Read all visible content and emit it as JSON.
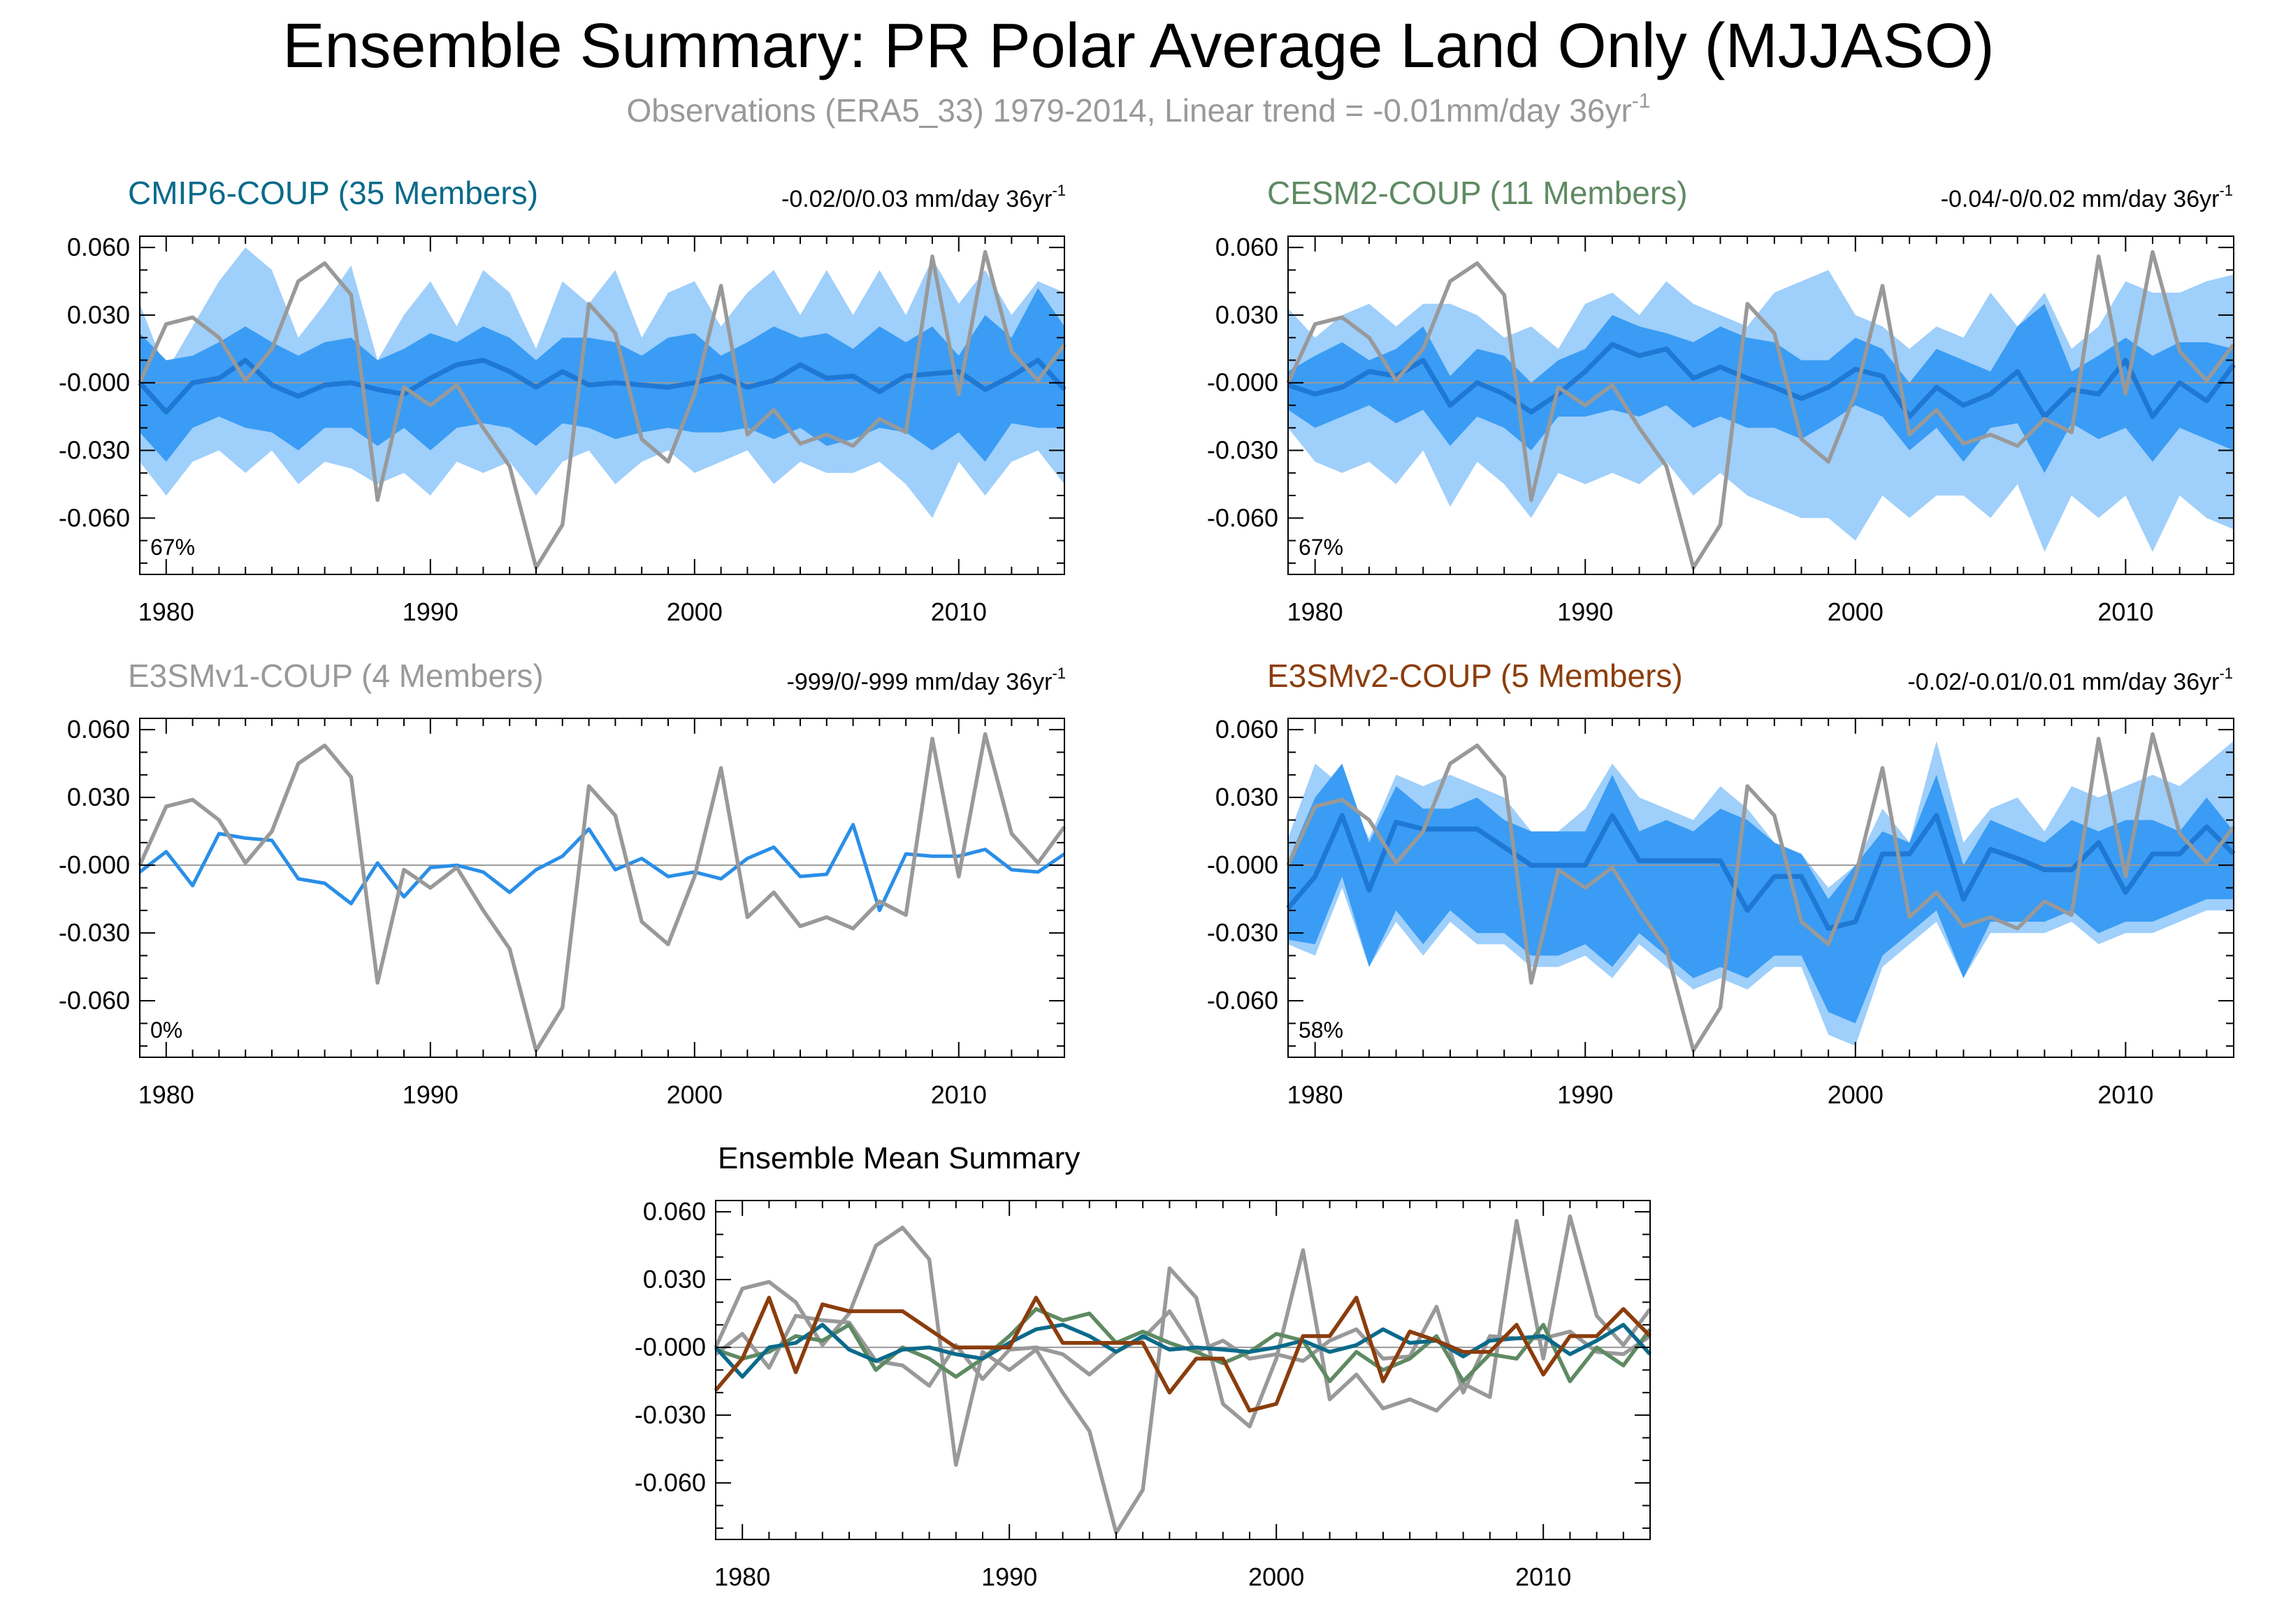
{
  "title": "Ensemble Summary: PR Polar Average Land Only (MJJASO)",
  "subtitle": {
    "text": "Observations (ERA5_33) 1979-2014, Linear trend = -0.01mm/day 36yr",
    "superscript": "-1"
  },
  "colors": {
    "band_outer": "#9fcffb",
    "band_inner": "#3a9cf4",
    "ens_mean": "#1f78d4",
    "mean_single": "#2a8ee8",
    "observations": "#999999",
    "zero_line": "#9a9a9a",
    "cmip6": "#0a6a8a",
    "cesm2": "#5e8a62",
    "e3smv1": "#999999",
    "e3smv2": "#8b3d0c"
  },
  "chart_data": [
    {
      "type": "area",
      "panel": "cmip6",
      "title": "CMIP6-COUP (35 Members)",
      "trend_label": "-0.02/0/0.03 mm/day 36yr",
      "trend_sup": "-1",
      "percent_label": "67%",
      "xlim": [
        1979,
        2014
      ],
      "ylim": [
        -0.085,
        0.065
      ],
      "x_ticks": [
        1980,
        1990,
        2000,
        2010
      ],
      "y_tick_labels": [
        "0.060",
        "0.030",
        "-0.000",
        "-0.030",
        "-0.060"
      ],
      "y_tick_values": [
        0.06,
        0.03,
        0.0,
        -0.03,
        -0.06
      ],
      "years": [
        1979,
        1980,
        1981,
        1982,
        1983,
        1984,
        1985,
        1986,
        1987,
        1988,
        1989,
        1990,
        1991,
        1992,
        1993,
        1994,
        1995,
        1996,
        1997,
        1998,
        1999,
        2000,
        2001,
        2002,
        2003,
        2004,
        2005,
        2006,
        2007,
        2008,
        2009,
        2010,
        2011,
        2012,
        2013,
        2014
      ],
      "outer_upper": [
        0.035,
        0.005,
        0.025,
        0.045,
        0.06,
        0.05,
        0.02,
        0.035,
        0.052,
        0.01,
        0.03,
        0.045,
        0.025,
        0.05,
        0.04,
        0.015,
        0.045,
        0.035,
        0.05,
        0.02,
        0.04,
        0.045,
        0.025,
        0.04,
        0.05,
        0.03,
        0.05,
        0.03,
        0.05,
        0.03,
        0.055,
        0.035,
        0.05,
        0.03,
        0.045,
        0.04
      ],
      "inner_upper": [
        0.022,
        0.01,
        0.012,
        0.018,
        0.025,
        0.018,
        0.012,
        0.018,
        0.02,
        0.01,
        0.015,
        0.022,
        0.018,
        0.025,
        0.02,
        0.01,
        0.02,
        0.02,
        0.018,
        0.012,
        0.02,
        0.022,
        0.012,
        0.018,
        0.025,
        0.02,
        0.022,
        0.015,
        0.025,
        0.018,
        0.025,
        0.012,
        0.03,
        0.02,
        0.042,
        0.025
      ],
      "inner_lower": [
        -0.022,
        -0.035,
        -0.02,
        -0.015,
        -0.02,
        -0.022,
        -0.03,
        -0.02,
        -0.02,
        -0.028,
        -0.02,
        -0.03,
        -0.02,
        -0.018,
        -0.02,
        -0.028,
        -0.018,
        -0.02,
        -0.025,
        -0.022,
        -0.02,
        -0.022,
        -0.022,
        -0.02,
        -0.025,
        -0.02,
        -0.028,
        -0.025,
        -0.02,
        -0.022,
        -0.03,
        -0.022,
        -0.035,
        -0.018,
        -0.02,
        -0.02
      ],
      "outer_lower": [
        -0.035,
        -0.05,
        -0.035,
        -0.03,
        -0.04,
        -0.03,
        -0.045,
        -0.035,
        -0.038,
        -0.045,
        -0.04,
        -0.05,
        -0.035,
        -0.04,
        -0.035,
        -0.05,
        -0.035,
        -0.03,
        -0.045,
        -0.035,
        -0.03,
        -0.04,
        -0.035,
        -0.03,
        -0.045,
        -0.035,
        -0.04,
        -0.04,
        -0.035,
        -0.045,
        -0.06,
        -0.035,
        -0.05,
        -0.035,
        -0.03,
        -0.045
      ],
      "ens_mean": [
        0.0,
        -0.013,
        0.0,
        0.002,
        0.01,
        -0.001,
        -0.006,
        -0.001,
        0.0,
        -0.003,
        -0.005,
        0.002,
        0.008,
        0.01,
        0.005,
        -0.002,
        0.005,
        -0.001,
        0.0,
        -0.001,
        -0.002,
        0.0,
        0.003,
        -0.002,
        0.001,
        0.008,
        0.002,
        0.003,
        -0.004,
        0.003,
        0.004,
        0.005,
        -0.003,
        0.003,
        0.01,
        -0.003
      ]
    },
    {
      "type": "area",
      "panel": "cesm2",
      "title": "CESM2-COUP (11 Members)",
      "trend_label": "-0.04/-0/0.02 mm/day 36yr",
      "trend_sup": "-1",
      "percent_label": "67%",
      "xlim": [
        1979,
        2014
      ],
      "ylim": [
        -0.085,
        0.065
      ],
      "x_ticks": [
        1980,
        1990,
        2000,
        2010
      ],
      "y_tick_labels": [
        "0.060",
        "0.030",
        "-0.000",
        "-0.030",
        "-0.060"
      ],
      "y_tick_values": [
        0.06,
        0.03,
        0.0,
        -0.03,
        -0.06
      ],
      "years": [
        1979,
        1980,
        1981,
        1982,
        1983,
        1984,
        1985,
        1986,
        1987,
        1988,
        1989,
        1990,
        1991,
        1992,
        1993,
        1994,
        1995,
        1996,
        1997,
        1998,
        1999,
        2000,
        2001,
        2002,
        2003,
        2004,
        2005,
        2006,
        2007,
        2008,
        2009,
        2010,
        2011,
        2012,
        2013,
        2014
      ],
      "outer_upper": [
        0.033,
        0.02,
        0.03,
        0.035,
        0.025,
        0.035,
        0.035,
        0.03,
        0.02,
        0.025,
        0.015,
        0.035,
        0.04,
        0.03,
        0.045,
        0.035,
        0.03,
        0.025,
        0.04,
        0.045,
        0.05,
        0.03,
        0.025,
        0.015,
        0.025,
        0.02,
        0.04,
        0.025,
        0.04,
        0.015,
        0.025,
        0.045,
        0.04,
        0.04,
        0.045,
        0.048
      ],
      "inner_upper": [
        0.005,
        0.012,
        0.018,
        0.01,
        0.015,
        0.025,
        0.003,
        0.015,
        0.012,
        0.0,
        0.01,
        0.015,
        0.03,
        0.025,
        0.022,
        0.018,
        0.025,
        0.02,
        0.018,
        0.01,
        0.01,
        0.02,
        0.015,
        0.0,
        0.015,
        0.01,
        0.005,
        0.025,
        0.035,
        0.005,
        0.012,
        0.02,
        0.012,
        0.018,
        0.018,
        0.015
      ],
      "inner_lower": [
        -0.012,
        -0.02,
        -0.015,
        -0.01,
        -0.018,
        -0.012,
        -0.028,
        -0.015,
        -0.02,
        -0.03,
        -0.015,
        -0.015,
        -0.012,
        -0.015,
        -0.01,
        -0.02,
        -0.015,
        -0.02,
        -0.02,
        -0.025,
        -0.018,
        -0.01,
        -0.015,
        -0.03,
        -0.02,
        -0.035,
        -0.02,
        -0.018,
        -0.04,
        -0.018,
        -0.025,
        -0.02,
        -0.035,
        -0.02,
        -0.025,
        -0.03
      ],
      "outer_lower": [
        -0.02,
        -0.035,
        -0.04,
        -0.035,
        -0.045,
        -0.03,
        -0.055,
        -0.035,
        -0.045,
        -0.06,
        -0.04,
        -0.045,
        -0.04,
        -0.045,
        -0.035,
        -0.05,
        -0.04,
        -0.05,
        -0.055,
        -0.06,
        -0.06,
        -0.07,
        -0.05,
        -0.06,
        -0.05,
        -0.05,
        -0.06,
        -0.045,
        -0.075,
        -0.05,
        -0.06,
        -0.05,
        -0.075,
        -0.05,
        -0.06,
        -0.065
      ],
      "ens_mean": [
        -0.001,
        -0.005,
        -0.002,
        0.005,
        0.003,
        0.01,
        -0.01,
        0.0,
        -0.005,
        -0.013,
        -0.005,
        0.005,
        0.017,
        0.012,
        0.015,
        0.002,
        0.007,
        0.002,
        -0.002,
        -0.007,
        -0.002,
        0.006,
        0.003,
        -0.015,
        -0.002,
        -0.01,
        -0.005,
        0.005,
        -0.015,
        -0.003,
        -0.005,
        0.01,
        -0.015,
        0.0,
        -0.008,
        0.008
      ]
    },
    {
      "type": "line",
      "panel": "e3smv1",
      "title": "E3SMv1-COUP (4 Members)",
      "trend_label": "-999/0/-999 mm/day 36yr",
      "trend_sup": "-1",
      "percent_label": "0%",
      "xlim": [
        1979,
        2014
      ],
      "ylim": [
        -0.085,
        0.065
      ],
      "x_ticks": [
        1980,
        1990,
        2000,
        2010
      ],
      "y_tick_labels": [
        "0.060",
        "0.030",
        "-0.000",
        "-0.030",
        "-0.060"
      ],
      "y_tick_values": [
        0.06,
        0.03,
        0.0,
        -0.03,
        -0.06
      ],
      "years": [
        1979,
        1980,
        1981,
        1982,
        1983,
        1984,
        1985,
        1986,
        1987,
        1988,
        1989,
        1990,
        1991,
        1992,
        1993,
        1994,
        1995,
        1996,
        1997,
        1998,
        1999,
        2000,
        2001,
        2002,
        2003,
        2004,
        2005,
        2006,
        2007,
        2008,
        2009,
        2010,
        2011,
        2012,
        2013,
        2014
      ],
      "ens_mean": [
        -0.003,
        0.006,
        -0.009,
        0.014,
        0.012,
        0.011,
        -0.006,
        -0.008,
        -0.017,
        0.001,
        -0.014,
        -0.001,
        0.0,
        -0.003,
        -0.012,
        -0.002,
        0.004,
        0.016,
        -0.002,
        0.003,
        -0.005,
        -0.003,
        -0.006,
        0.003,
        0.008,
        -0.005,
        -0.004,
        0.018,
        -0.02,
        0.005,
        0.004,
        0.004,
        0.007,
        -0.002,
        -0.003,
        0.005
      ]
    },
    {
      "type": "area",
      "panel": "e3smv2",
      "title": "E3SMv2-COUP (5 Members)",
      "trend_label": "-0.02/-0.01/0.01 mm/day 36yr",
      "trend_sup": "-1",
      "percent_label": "58%",
      "xlim": [
        1979,
        2014
      ],
      "ylim": [
        -0.085,
        0.065
      ],
      "x_ticks": [
        1980,
        1990,
        2000,
        2010
      ],
      "y_tick_labels": [
        "0.060",
        "0.030",
        "-0.000",
        "-0.030",
        "-0.060"
      ],
      "y_tick_values": [
        0.06,
        0.03,
        0.0,
        -0.03,
        -0.06
      ],
      "years": [
        1979,
        1980,
        1981,
        1982,
        1983,
        1984,
        1985,
        1986,
        1987,
        1988,
        1989,
        1990,
        1991,
        1992,
        1993,
        1994,
        1995,
        1996,
        1997,
        1998,
        1999,
        2000,
        2001,
        2002,
        2003,
        2004,
        2005,
        2006,
        2007,
        2008,
        2009,
        2010,
        2011,
        2012,
        2013,
        2014
      ],
      "outer_upper": [
        0.012,
        0.045,
        0.035,
        0.012,
        0.04,
        0.035,
        0.04,
        0.035,
        0.03,
        0.015,
        0.015,
        0.025,
        0.045,
        0.03,
        0.025,
        0.02,
        0.035,
        0.025,
        0.01,
        0.005,
        -0.01,
        0.0,
        0.025,
        0.01,
        0.055,
        0.01,
        0.025,
        0.03,
        0.015,
        0.035,
        0.03,
        0.035,
        0.04,
        0.035,
        0.045,
        0.055
      ],
      "inner_upper": [
        0.002,
        0.03,
        0.045,
        0.01,
        0.035,
        0.025,
        0.025,
        0.03,
        0.02,
        0.015,
        0.015,
        0.015,
        0.04,
        0.015,
        0.02,
        0.015,
        0.025,
        0.02,
        0.01,
        0.005,
        -0.015,
        0.0,
        0.015,
        0.01,
        0.04,
        0.0,
        0.02,
        0.015,
        0.01,
        0.02,
        0.015,
        0.02,
        0.02,
        0.015,
        0.03,
        0.015
      ],
      "inner_lower": [
        -0.033,
        -0.035,
        -0.005,
        -0.045,
        -0.02,
        -0.035,
        -0.02,
        -0.03,
        -0.03,
        -0.04,
        -0.04,
        -0.035,
        -0.045,
        -0.03,
        -0.04,
        -0.05,
        -0.045,
        -0.05,
        -0.04,
        -0.04,
        -0.065,
        -0.07,
        -0.04,
        -0.03,
        -0.02,
        -0.05,
        -0.025,
        -0.025,
        -0.025,
        -0.02,
        -0.03,
        -0.025,
        -0.025,
        -0.02,
        -0.015,
        -0.015
      ],
      "outer_lower": [
        -0.035,
        -0.04,
        -0.01,
        -0.045,
        -0.025,
        -0.04,
        -0.025,
        -0.035,
        -0.035,
        -0.045,
        -0.045,
        -0.04,
        -0.05,
        -0.035,
        -0.045,
        -0.055,
        -0.05,
        -0.055,
        -0.045,
        -0.045,
        -0.075,
        -0.08,
        -0.045,
        -0.035,
        -0.025,
        -0.05,
        -0.03,
        -0.03,
        -0.03,
        -0.025,
        -0.035,
        -0.03,
        -0.03,
        -0.025,
        -0.02,
        -0.02
      ],
      "ens_mean": [
        -0.019,
        -0.005,
        0.022,
        -0.011,
        0.019,
        0.016,
        0.016,
        0.016,
        0.008,
        0.0,
        0.0,
        0.0,
        0.022,
        0.002,
        0.002,
        0.002,
        0.002,
        -0.02,
        -0.005,
        -0.005,
        -0.028,
        -0.025,
        0.005,
        0.005,
        0.022,
        -0.015,
        0.007,
        0.003,
        -0.002,
        -0.002,
        0.01,
        -0.012,
        0.005,
        0.005,
        0.017,
        0.005
      ]
    },
    {
      "type": "line",
      "panel": "summary",
      "title": "Ensemble Mean Summary",
      "xlim": [
        1979,
        2014
      ],
      "ylim": [
        -0.085,
        0.065
      ],
      "x_ticks": [
        1980,
        1990,
        2000,
        2010
      ],
      "y_tick_labels": [
        "0.060",
        "0.030",
        "-0.000",
        "-0.030",
        "-0.060"
      ],
      "y_tick_values": [
        0.06,
        0.03,
        0.0,
        -0.03,
        -0.06
      ],
      "years": [
        1979,
        1980,
        1981,
        1982,
        1983,
        1984,
        1985,
        1986,
        1987,
        1988,
        1989,
        1990,
        1991,
        1992,
        1993,
        1994,
        1995,
        1996,
        1997,
        1998,
        1999,
        2000,
        2001,
        2002,
        2003,
        2004,
        2005,
        2006,
        2007,
        2008,
        2009,
        2010,
        2011,
        2012,
        2013,
        2014
      ],
      "series_keys": [
        "e3smv1",
        "cesm2",
        "cmip6",
        "e3smv2"
      ]
    }
  ],
  "observations": {
    "years": [
      1979,
      1980,
      1981,
      1982,
      1983,
      1984,
      1985,
      1986,
      1987,
      1988,
      1989,
      1990,
      1991,
      1992,
      1993,
      1994,
      1995,
      1996,
      1997,
      1998,
      1999,
      2000,
      2001,
      2002,
      2003,
      2004,
      2005,
      2006,
      2007,
      2008,
      2009,
      2010,
      2011,
      2012,
      2013,
      2014
    ],
    "values": [
      0.0,
      0.026,
      0.029,
      0.02,
      0.001,
      0.015,
      0.045,
      0.053,
      0.039,
      -0.052,
      -0.002,
      -0.01,
      -0.001,
      -0.02,
      -0.037,
      -0.082,
      -0.063,
      0.035,
      0.022,
      -0.025,
      -0.035,
      -0.005,
      0.043,
      -0.023,
      -0.012,
      -0.027,
      -0.023,
      -0.028,
      -0.016,
      -0.022,
      0.056,
      -0.005,
      0.058,
      0.014,
      0.001,
      0.017
    ]
  }
}
